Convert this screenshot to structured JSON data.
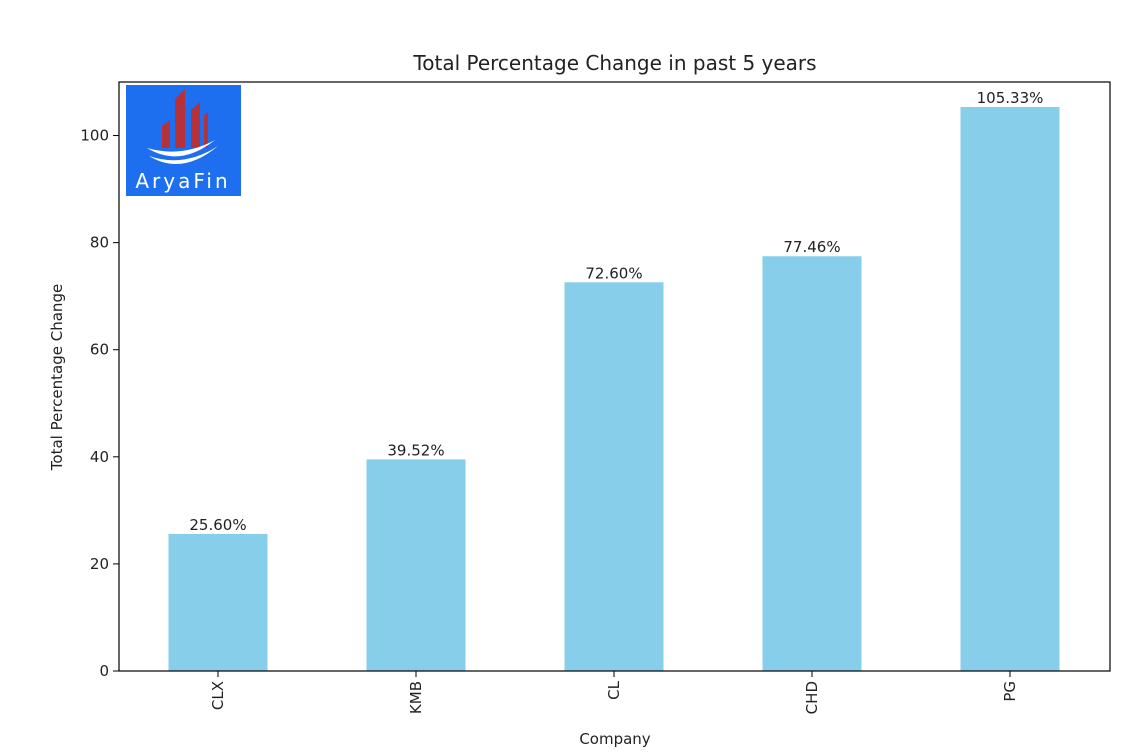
{
  "chart_data": {
    "type": "bar",
    "title": "Total Percentage Change in past 5 years",
    "xlabel": "Company",
    "ylabel": "Total Percentage Change",
    "categories": [
      "CLX",
      "KMB",
      "CL",
      "CHD",
      "PG"
    ],
    "values": [
      25.6,
      39.52,
      72.6,
      77.46,
      105.33
    ],
    "data_labels": [
      "25.60%",
      "39.52%",
      "72.60%",
      "77.46%",
      "105.33%"
    ],
    "ylim": [
      0,
      110
    ],
    "yticks": [
      0,
      20,
      40,
      60,
      80,
      100
    ],
    "grid": false,
    "legend": "none",
    "bar_color": "#87CEEB",
    "x_tick_rotation": "vertical"
  },
  "logo": {
    "text": "AryaFin",
    "background_color": "#1E6FF0",
    "bars_color": "#B5323A",
    "icon": "building-swoosh-logo"
  }
}
